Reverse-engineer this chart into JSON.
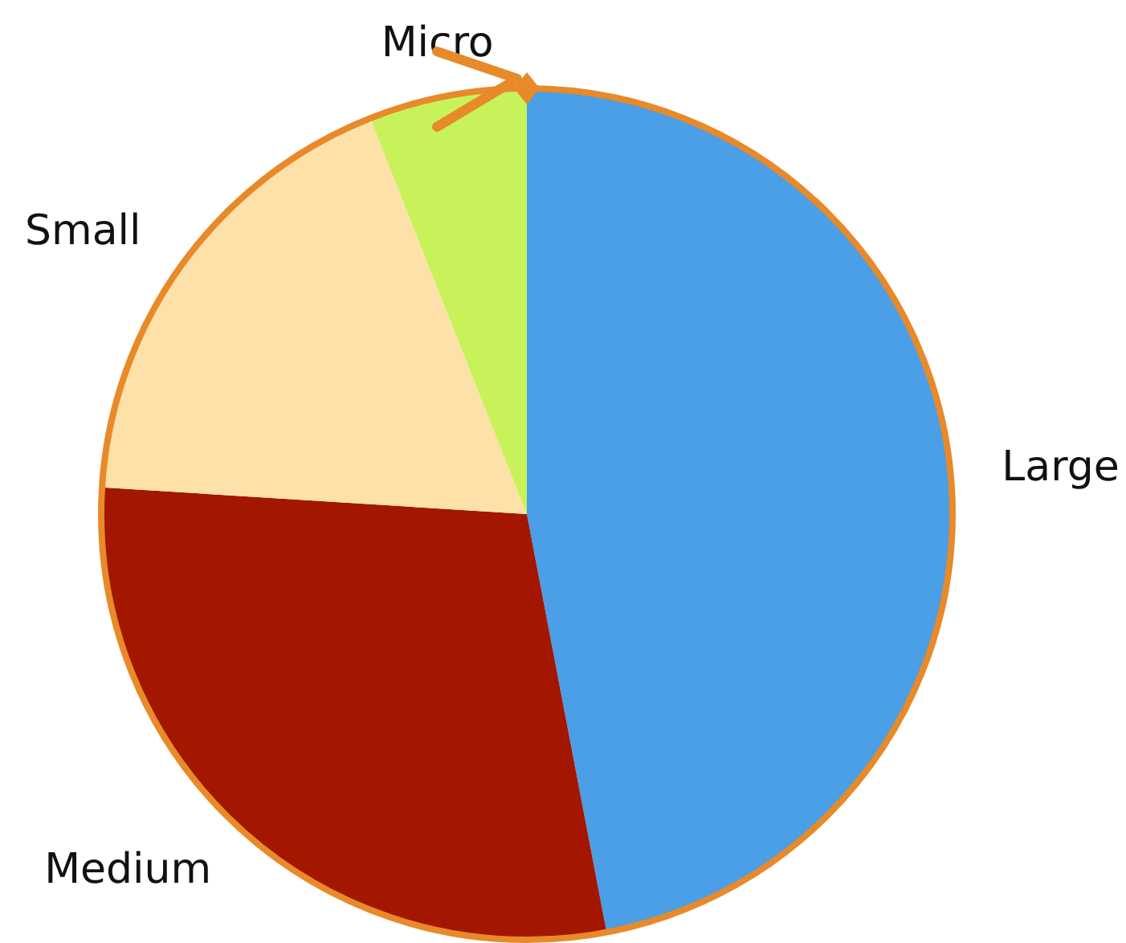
{
  "chart_data": {
    "type": "pie",
    "categories": [
      "Large",
      "Medium",
      "Small",
      "Micro"
    ],
    "values": [
      47,
      29,
      18,
      6
    ],
    "colors": [
      "#4a9fe6",
      "#a31600",
      "#fee1a8",
      "#c8f25a"
    ],
    "legend": false
  }
}
